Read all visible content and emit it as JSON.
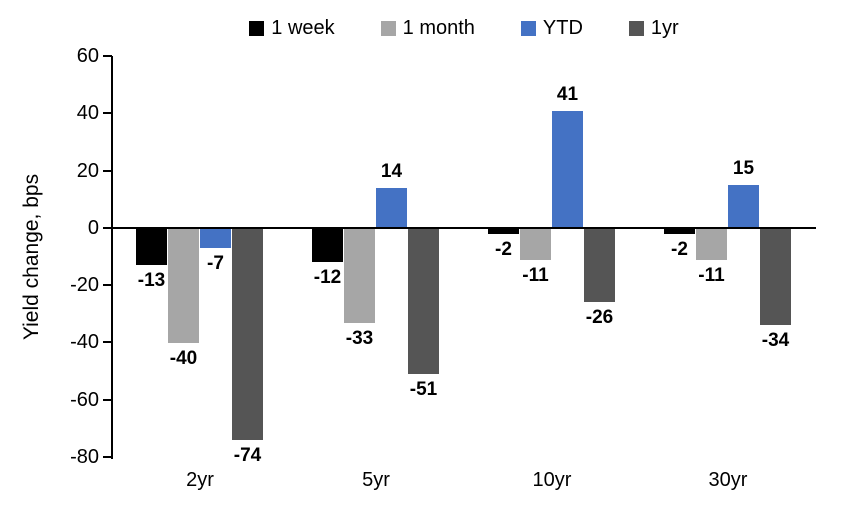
{
  "chart_data": {
    "type": "bar",
    "title": "",
    "xlabel": "",
    "ylabel": "Yield change, bps",
    "categories": [
      "2yr",
      "5yr",
      "10yr",
      "30yr"
    ],
    "series": [
      {
        "name": "1 week",
        "color": "#000000",
        "values": [
          -13,
          -12,
          -2,
          -2
        ]
      },
      {
        "name": "1 month",
        "color": "#a6a6a6",
        "values": [
          -40,
          -33,
          -11,
          -11
        ]
      },
      {
        "name": "YTD",
        "color": "#4472c4",
        "values": [
          -7,
          14,
          41,
          15
        ]
      },
      {
        "name": "1yr",
        "color": "#555555",
        "values": [
          -74,
          -51,
          -26,
          -34
        ]
      }
    ],
    "y_axis": {
      "min": -80,
      "max": 60,
      "step": 20,
      "ticks": [
        60,
        40,
        20,
        0,
        -20,
        -40,
        -60,
        -80
      ]
    },
    "legend_position": "top",
    "grid": false,
    "data_labels": true
  }
}
